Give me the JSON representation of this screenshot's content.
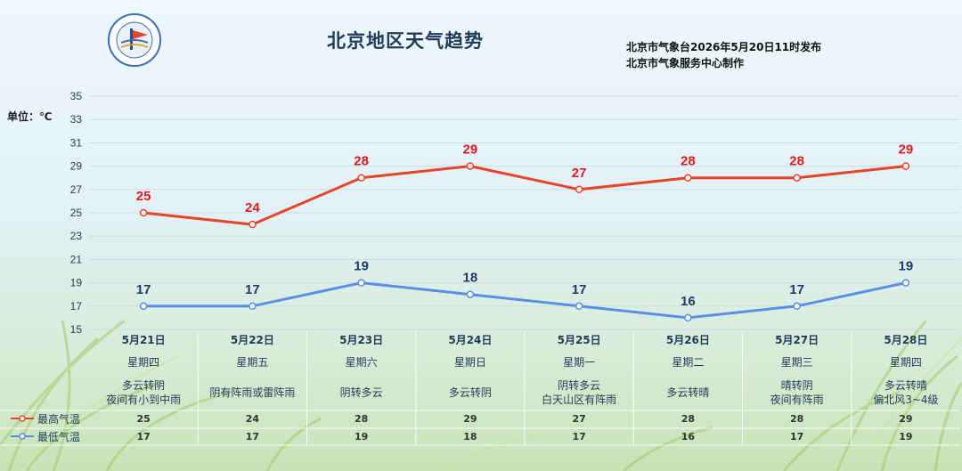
{
  "header": {
    "title": "北京地区天气趋势",
    "issue_line1": "北京市气象台2026年5月20日11时发布",
    "issue_line2": "北京市气象服务中心制作",
    "unit": "单位：℃"
  },
  "colors": {
    "high": "#e8442b",
    "low": "#5b8ee6",
    "label_high": "#e01b1b",
    "label_low": "#1f3b6a"
  },
  "chart_data": {
    "type": "line",
    "categories": [
      "5月21日",
      "5月22日",
      "5月23日",
      "5月24日",
      "5月25日",
      "5月26日",
      "5月27日",
      "5月28日"
    ],
    "ylim": [
      15,
      35
    ],
    "yticks": [
      15,
      17,
      19,
      21,
      23,
      25,
      27,
      29,
      31,
      33,
      35
    ],
    "ylabel": "单位：℃",
    "grid": true,
    "series": [
      {
        "name": "最高气温",
        "values": [
          25,
          24,
          28,
          29,
          27,
          28,
          28,
          29
        ]
      },
      {
        "name": "最低气温",
        "values": [
          17,
          17,
          19,
          18,
          17,
          16,
          17,
          19
        ]
      }
    ]
  },
  "table": {
    "weekdays": [
      "星期四",
      "星期五",
      "星期六",
      "星期日",
      "星期一",
      "星期二",
      "星期三",
      "星期四"
    ],
    "weather": [
      [
        "多云转阴",
        "夜间有小到中雨"
      ],
      [
        "阴有阵雨或雷阵雨"
      ],
      [
        "阴转多云"
      ],
      [
        "多云转阴"
      ],
      [
        "阴转多云",
        "白天山区有阵雨"
      ],
      [
        "多云转晴"
      ],
      [
        "晴转阴",
        "夜间有阵雨"
      ],
      [
        "多云转晴",
        "偏北风3~4级"
      ]
    ],
    "legend_high": "最高气温",
    "legend_low": "最低气温"
  }
}
